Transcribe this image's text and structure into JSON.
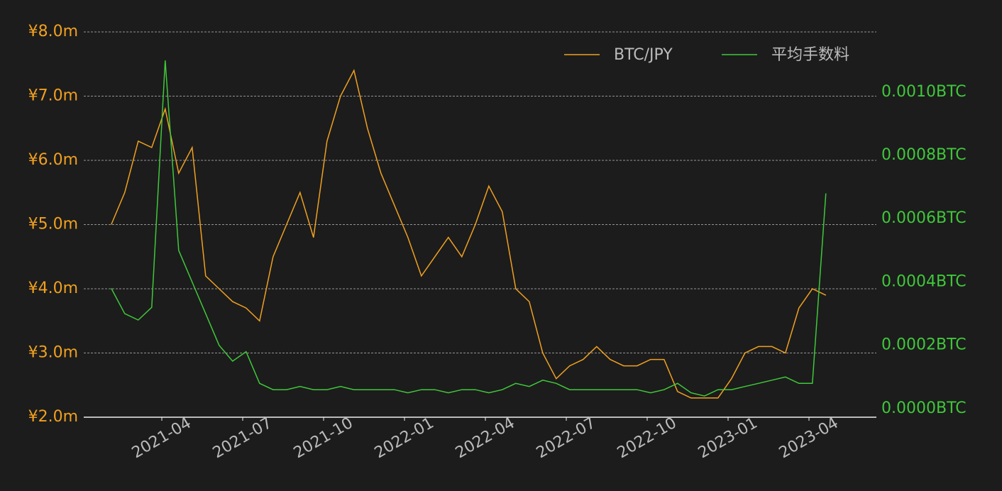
{
  "chart_data": {
    "type": "line",
    "x": [
      "2021-02",
      "2021-02",
      "2021-03",
      "2021-03",
      "2021-04",
      "2021-04",
      "2021-05",
      "2021-05",
      "2021-06",
      "2021-06",
      "2021-07",
      "2021-07",
      "2021-08",
      "2021-08",
      "2021-09",
      "2021-09",
      "2021-10",
      "2021-10",
      "2021-11",
      "2021-11",
      "2021-12",
      "2021-12",
      "2022-01",
      "2022-01",
      "2022-02",
      "2022-02",
      "2022-03",
      "2022-03",
      "2022-04",
      "2022-04",
      "2022-05",
      "2022-05",
      "2022-06",
      "2022-06",
      "2022-07",
      "2022-07",
      "2022-08",
      "2022-08",
      "2022-09",
      "2022-09",
      "2022-10",
      "2022-10",
      "2022-11",
      "2022-11",
      "2022-12",
      "2022-12",
      "2023-01",
      "2023-01",
      "2023-02",
      "2023-02",
      "2023-03",
      "2023-03",
      "2023-04",
      "2023-04"
    ],
    "series": [
      {
        "name": "BTC/JPY",
        "color": "#f0a020",
        "values": [
          5000000,
          5500000,
          6300000,
          6200000,
          6800000,
          5800000,
          6200000,
          4200000,
          4000000,
          3800000,
          3700000,
          3500000,
          4500000,
          5000000,
          5500000,
          4800000,
          6300000,
          7000000,
          7400000,
          6500000,
          5800000,
          5300000,
          4800000,
          4200000,
          4500000,
          4800000,
          4500000,
          5000000,
          5600000,
          5200000,
          4000000,
          3800000,
          3000000,
          2600000,
          2800000,
          2900000,
          3100000,
          2900000,
          2800000,
          2800000,
          2900000,
          2900000,
          2400000,
          2300000,
          2300000,
          2300000,
          2600000,
          3000000,
          3100000,
          3100000,
          3000000,
          3700000,
          4000000,
          3900000
        ]
      },
      {
        "name": "平均手数料",
        "color": "#3fc83a",
        "axis": "y2",
        "values": [
          0.00038,
          0.0003,
          0.00028,
          0.00032,
          0.0011,
          0.0005,
          0.0004,
          0.0003,
          0.0002,
          0.00015,
          0.00018,
          8e-05,
          6e-05,
          6e-05,
          7e-05,
          6e-05,
          6e-05,
          7e-05,
          6e-05,
          6e-05,
          6e-05,
          6e-05,
          5e-05,
          6e-05,
          6e-05,
          5e-05,
          6e-05,
          6e-05,
          5e-05,
          6e-05,
          8e-05,
          7e-05,
          9e-05,
          8e-05,
          6e-05,
          6e-05,
          6e-05,
          6e-05,
          6e-05,
          6e-05,
          5e-05,
          6e-05,
          8e-05,
          5e-05,
          4e-05,
          6e-05,
          6e-05,
          7e-05,
          8e-05,
          9e-05,
          0.0001,
          8e-05,
          8e-05,
          0.00068
        ]
      }
    ],
    "xticks": [
      "2021-04",
      "2021-07",
      "2021-10",
      "2022-01",
      "2022-04",
      "2022-07",
      "2022-10",
      "2023-01",
      "2023-04"
    ],
    "ylim": [
      2000000,
      8000000
    ],
    "yticks": [
      {
        "value": 2000000,
        "label": "¥2.0m"
      },
      {
        "value": 3000000,
        "label": "¥3.0m"
      },
      {
        "value": 4000000,
        "label": "¥4.0m"
      },
      {
        "value": 5000000,
        "label": "¥5.0m"
      },
      {
        "value": 6000000,
        "label": "¥6.0m"
      },
      {
        "value": 7000000,
        "label": "¥7.0m"
      },
      {
        "value": 8000000,
        "label": "¥8.0m"
      }
    ],
    "y2lim": [
      -2.7e-05,
      0.00119
    ],
    "y2ticks": [
      {
        "value": 0,
        "label": "0.0000BTC"
      },
      {
        "value": 0.0002,
        "label": "0.0002BTC"
      },
      {
        "value": 0.0004,
        "label": "0.0004BTC"
      },
      {
        "value": 0.0006,
        "label": "0.0006BTC"
      },
      {
        "value": 0.0008,
        "label": "0.0008BTC"
      },
      {
        "value": 0.001,
        "label": "0.0010BTC"
      }
    ],
    "grid": true,
    "legend": "upper right"
  }
}
